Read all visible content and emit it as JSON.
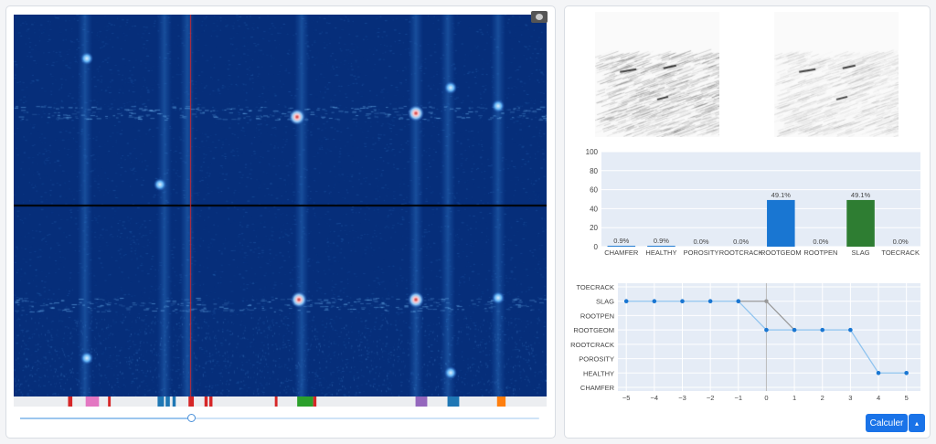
{
  "left_panel": {
    "cursor_index_fraction": 0.33,
    "slider_fraction": 0.33,
    "markers": [
      {
        "x": 0.102,
        "color": "#d62728",
        "w": 0.008
      },
      {
        "x": 0.135,
        "color": "#e377c2",
        "w": 0.025
      },
      {
        "x": 0.177,
        "color": "#d62728",
        "w": 0.005
      },
      {
        "x": 0.27,
        "color": "#1f77b4",
        "w": 0.012
      },
      {
        "x": 0.285,
        "color": "#1f77b4",
        "w": 0.008
      },
      {
        "x": 0.298,
        "color": "#1f77b4",
        "w": 0.006
      },
      {
        "x": 0.328,
        "color": "#d62728",
        "w": 0.01
      },
      {
        "x": 0.358,
        "color": "#d62728",
        "w": 0.006
      },
      {
        "x": 0.367,
        "color": "#d62728",
        "w": 0.006
      },
      {
        "x": 0.49,
        "color": "#d62728",
        "w": 0.005
      },
      {
        "x": 0.532,
        "color": "#2ca02c",
        "w": 0.03
      },
      {
        "x": 0.562,
        "color": "#d62728",
        "w": 0.006
      },
      {
        "x": 0.754,
        "color": "#9467bd",
        "w": 0.022
      },
      {
        "x": 0.814,
        "color": "#1f77b4",
        "w": 0.022
      },
      {
        "x": 0.907,
        "color": "#ff7f0e",
        "w": 0.016
      }
    ]
  },
  "colors": {
    "heatmap_bg": "#062e7a",
    "bar_blue": "#1976d2",
    "bar_green": "#2e7d32",
    "plot_bg": "#e5ecf6",
    "line_current": "#90c4ef",
    "line_previous": "#999999",
    "point": "#1976d2",
    "button": "#1a73e8"
  },
  "chart_data": [
    {
      "type": "bar",
      "categories": [
        "CHAMFER",
        "HEALTHY",
        "POROSITY",
        "ROOTCRACK",
        "ROOTGEOM",
        "ROOTPEN",
        "SLAG",
        "TOECRACK"
      ],
      "values": [
        0.9,
        0.9,
        0.0,
        0.0,
        49.1,
        0.0,
        49.1,
        0.0
      ],
      "data_labels": [
        "0.9%",
        "0.9%",
        "0.0%",
        "0.0%",
        "49.1%",
        "0.0%",
        "49.1%",
        "0.0%"
      ],
      "bar_colors": [
        "#1976d2",
        "#1976d2",
        "#1976d2",
        "#1976d2",
        "#1976d2",
        "#1976d2",
        "#2e7d32",
        "#1976d2"
      ],
      "ylim": [
        0,
        100
      ],
      "yticks": [
        0,
        20,
        40,
        60,
        80,
        100
      ]
    },
    {
      "type": "line",
      "categories": [
        "CHAMFER",
        "HEALTHY",
        "POROSITY",
        "ROOTCRACK",
        "ROOTGEOM",
        "ROOTPEN",
        "SLAG",
        "TOECRACK"
      ],
      "x": [
        -5,
        -4,
        -3,
        -2,
        -1,
        0,
        1,
        2,
        3,
        4,
        5
      ],
      "xticks": [
        "−5",
        "−4",
        "−3",
        "−2",
        "−1",
        "0",
        "1",
        "2",
        "3",
        "4",
        "5"
      ],
      "series": [
        {
          "values": [
            "SLAG",
            "SLAG",
            "SLAG",
            "SLAG",
            "SLAG",
            "ROOTGEOM",
            "ROOTGEOM",
            "ROOTGEOM",
            "ROOTGEOM",
            "HEALTHY",
            "HEALTHY"
          ]
        },
        {
          "x": [
            -1,
            0,
            1
          ],
          "values": [
            "SLAG",
            "SLAG",
            "ROOTGEOM"
          ]
        }
      ],
      "xlim": [
        -5.3,
        5.5
      ]
    }
  ],
  "actions": {
    "calculate_label": "Calculer",
    "dropdown_label": "▴"
  }
}
